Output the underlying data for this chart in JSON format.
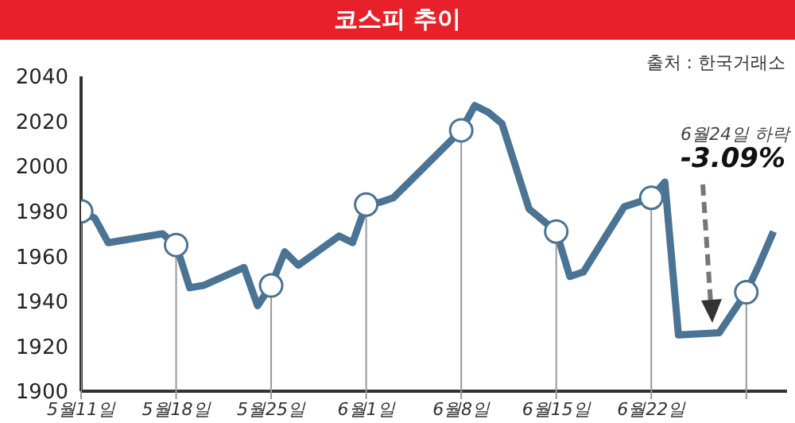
{
  "chart_data": {
    "type": "line",
    "title": "코스피 추이",
    "annotations": [
      "출처 : 한국거래소",
      "6월24일 하락",
      "-3.09%"
    ],
    "series": [
      {
        "color": "#4a7394",
        "x": [
          "--05-11",
          "--05-12",
          "--05-13",
          "--05-17",
          "--05-18",
          "--05-19",
          "--05-20",
          "--05-23",
          "--05-24",
          "--05-25",
          "--05-26",
          "--05-27",
          "--05-30",
          "--05-31",
          "--06-01",
          "--06-02",
          "--06-03",
          "--06-08",
          "--06-09",
          "--06-10",
          "--06-11",
          "--06-13",
          "--06-14",
          "--06-15",
          "--06-16",
          "--06-17",
          "--06-20",
          "--06-21",
          "--06-22",
          "--06-23",
          "--06-24",
          "--06-27",
          "--06-29",
          "--06-30",
          "--07-01"
        ],
        "values": [
          1980,
          1977,
          1966,
          1970,
          1965,
          1946,
          1947,
          1955,
          1938,
          1947,
          1962,
          1956,
          1969,
          1966,
          1983,
          1984,
          1986,
          2016,
          2027,
          2024,
          2019,
          1981,
          1976,
          1971,
          1951,
          1953,
          1982,
          1984,
          1986,
          1993,
          1925,
          1926,
          1944,
          1957,
          1971
        ]
      },
      {
        "type": "lollipop",
        "marker": "circle",
        "color": "#4a7394",
        "x": [
          "--05-11",
          "--05-18",
          "--05-25",
          "--06-01",
          "--06-08",
          "--06-15",
          "--06-22",
          "--06-29"
        ],
        "values": [
          1980,
          1965,
          1947,
          1983,
          2016,
          1971,
          1986,
          1944
        ]
      }
    ],
    "xlim": [
      "--05-11",
      "--07-02"
    ],
    "xticks": [
      {
        "value": "--05-11",
        "label": "5월11일"
      },
      {
        "value": "--05-18",
        "label": "5월18일"
      },
      {
        "value": "--05-25",
        "label": "5월25일"
      },
      {
        "value": "--06-01",
        "label": "6월1일"
      },
      {
        "value": "--06-08",
        "label": "6월8일"
      },
      {
        "value": "--06-15",
        "label": "6월15일"
      },
      {
        "value": "--06-22",
        "label": "6월22일"
      },
      {
        "value": "--06-29",
        "label": null
      }
    ],
    "ylim": [
      1900,
      2040
    ],
    "yticks": [
      1900,
      1920,
      1940,
      1960,
      1980,
      2000,
      2020,
      2040
    ],
    "line_style": "solid"
  }
}
